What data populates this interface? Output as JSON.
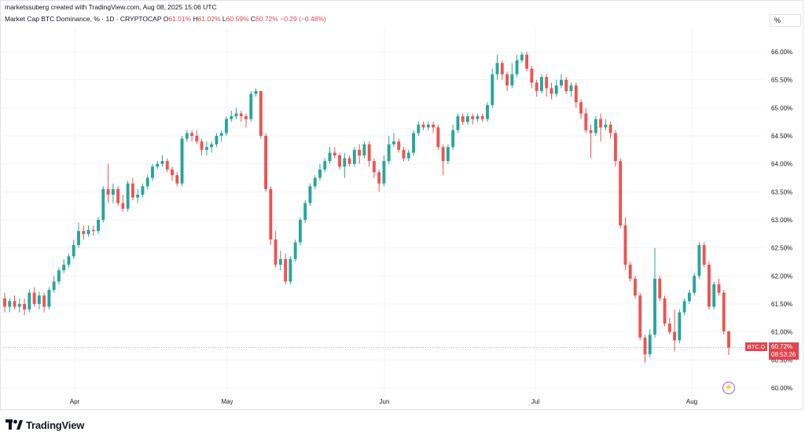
{
  "header": {
    "line": "marketssuberg created with TradingView.com, Aug 08, 2025 15:06 UTC"
  },
  "title": {
    "symbol": "Market Cap BTC Dominance, % · 1D · CRYPTOCAP",
    "o_label": "O",
    "o": "61.01%",
    "h_label": "H",
    "h": "61.02%",
    "l_label": "L",
    "l": "60.59%",
    "c_label": "C",
    "c": "60.72%",
    "change": "−0.29 (−0.48%)"
  },
  "scale_mode": "%",
  "price_tag": {
    "symbol": "BTC.D",
    "price": "60.72%",
    "countdown": "08:53:26"
  },
  "brand": {
    "name": "TradingView"
  },
  "colors": {
    "up": "#26a69a",
    "down": "#ef5350",
    "grid": "#f0f3fa",
    "text": "#131722",
    "flash": "#b04fcf"
  },
  "chart_data": {
    "type": "candlestick",
    "x_labels": [
      "Apr",
      "May",
      "Jun",
      "Jul",
      "Aug"
    ],
    "y_ticks": [
      "66.00%",
      "65.50%",
      "65.00%",
      "64.50%",
      "64.00%",
      "63.50%",
      "63.00%",
      "62.50%",
      "62.00%",
      "61.50%",
      "61.00%",
      "60.50%",
      "60.00%"
    ],
    "ylim": [
      59.85,
      66.55
    ],
    "last_price": 60.72,
    "candles": [
      [
        61.6,
        61.45,
        61.7,
        61.35
      ],
      [
        61.45,
        61.55,
        61.6,
        61.35
      ],
      [
        61.55,
        61.45,
        61.65,
        61.4
      ],
      [
        61.45,
        61.5,
        61.6,
        61.35
      ],
      [
        61.5,
        61.4,
        61.6,
        61.3
      ],
      [
        61.4,
        61.7,
        61.75,
        61.35
      ],
      [
        61.7,
        61.5,
        61.8,
        61.45
      ],
      [
        61.5,
        61.65,
        61.72,
        61.4
      ],
      [
        61.65,
        61.45,
        61.7,
        61.35
      ],
      [
        61.45,
        61.75,
        61.8,
        61.4
      ],
      [
        61.75,
        61.9,
        62.0,
        61.7
      ],
      [
        61.9,
        62.1,
        62.15,
        61.85
      ],
      [
        62.1,
        62.2,
        62.3,
        62.05
      ],
      [
        62.2,
        62.35,
        62.4,
        62.15
      ],
      [
        62.35,
        62.55,
        62.65,
        62.3
      ],
      [
        62.55,
        62.8,
        62.95,
        62.5
      ],
      [
        62.8,
        62.75,
        62.9,
        62.65
      ],
      [
        62.75,
        62.82,
        62.9,
        62.7
      ],
      [
        62.82,
        62.8,
        62.9,
        62.72
      ],
      [
        62.8,
        63.0,
        63.05,
        62.75
      ],
      [
        63.0,
        63.55,
        63.6,
        62.95
      ],
      [
        63.55,
        63.45,
        64.0,
        63.3
      ],
      [
        63.45,
        63.55,
        63.65,
        63.3
      ],
      [
        63.55,
        63.3,
        63.6,
        63.25
      ],
      [
        63.3,
        63.2,
        63.45,
        63.15
      ],
      [
        63.2,
        63.65,
        63.7,
        63.15
      ],
      [
        63.65,
        63.4,
        63.75,
        63.35
      ],
      [
        63.4,
        63.45,
        63.55,
        63.3
      ],
      [
        63.45,
        63.6,
        63.65,
        63.4
      ],
      [
        63.6,
        63.75,
        63.8,
        63.55
      ],
      [
        63.75,
        63.95,
        64.0,
        63.7
      ],
      [
        63.95,
        64.0,
        64.05,
        63.9
      ],
      [
        64.0,
        64.05,
        64.15,
        63.95
      ],
      [
        64.05,
        63.9,
        64.1,
        63.85
      ],
      [
        63.9,
        63.8,
        63.95,
        63.7
      ],
      [
        63.8,
        63.65,
        63.85,
        63.6
      ],
      [
        63.65,
        64.45,
        64.5,
        63.6
      ],
      [
        64.45,
        64.55,
        64.6,
        64.4
      ],
      [
        64.55,
        64.5,
        64.6,
        64.4
      ],
      [
        64.5,
        64.4,
        64.6,
        64.35
      ],
      [
        64.4,
        64.25,
        64.45,
        64.15
      ],
      [
        64.25,
        64.3,
        64.4,
        64.15
      ],
      [
        64.3,
        64.35,
        64.4,
        64.2
      ],
      [
        64.35,
        64.5,
        64.55,
        64.3
      ],
      [
        64.5,
        64.55,
        64.6,
        64.4
      ],
      [
        64.55,
        64.8,
        64.85,
        64.5
      ],
      [
        64.8,
        64.85,
        64.95,
        64.75
      ],
      [
        64.85,
        64.9,
        65.0,
        64.8
      ],
      [
        64.9,
        64.85,
        64.95,
        64.75
      ],
      [
        64.85,
        64.8,
        64.9,
        64.65
      ],
      [
        64.8,
        65.25,
        65.3,
        64.75
      ],
      [
        65.25,
        65.3,
        65.35,
        65.2
      ],
      [
        65.3,
        64.5,
        65.3,
        64.45
      ],
      [
        64.5,
        63.55,
        64.55,
        63.5
      ],
      [
        63.55,
        62.65,
        63.6,
        62.55
      ],
      [
        62.65,
        62.2,
        62.8,
        62.15
      ],
      [
        62.2,
        62.3,
        62.45,
        62.1
      ],
      [
        62.3,
        61.9,
        62.4,
        61.85
      ],
      [
        61.9,
        62.3,
        62.35,
        61.85
      ],
      [
        62.3,
        62.6,
        62.65,
        62.25
      ],
      [
        62.6,
        63.0,
        63.05,
        62.55
      ],
      [
        63.0,
        63.3,
        63.35,
        62.95
      ],
      [
        63.3,
        63.6,
        63.65,
        63.25
      ],
      [
        63.6,
        63.75,
        63.8,
        63.55
      ],
      [
        63.75,
        63.9,
        64.0,
        63.7
      ],
      [
        63.9,
        64.05,
        64.1,
        63.85
      ],
      [
        64.05,
        64.2,
        64.3,
        64.0
      ],
      [
        64.2,
        64.15,
        64.3,
        64.1
      ],
      [
        64.15,
        63.95,
        64.2,
        63.9
      ],
      [
        63.95,
        64.1,
        64.2,
        63.75
      ],
      [
        64.1,
        64.0,
        64.15,
        63.95
      ],
      [
        64.0,
        64.25,
        64.3,
        63.95
      ],
      [
        64.25,
        64.15,
        64.35,
        64.0
      ],
      [
        64.15,
        64.35,
        64.4,
        64.1
      ],
      [
        64.35,
        64.05,
        64.4,
        63.95
      ],
      [
        64.05,
        63.85,
        64.1,
        63.75
      ],
      [
        63.85,
        63.65,
        63.9,
        63.5
      ],
      [
        63.65,
        64.05,
        64.15,
        63.6
      ],
      [
        64.05,
        64.35,
        64.5,
        64.0
      ],
      [
        64.35,
        64.4,
        64.55,
        64.3
      ],
      [
        64.4,
        64.25,
        64.45,
        64.2
      ],
      [
        64.25,
        64.1,
        64.3,
        64.05
      ],
      [
        64.1,
        64.2,
        64.25,
        64.05
      ],
      [
        64.2,
        64.55,
        64.6,
        64.15
      ],
      [
        64.55,
        64.7,
        64.75,
        64.5
      ],
      [
        64.7,
        64.65,
        64.75,
        64.6
      ],
      [
        64.65,
        64.7,
        64.75,
        64.6
      ],
      [
        64.7,
        64.65,
        64.75,
        64.55
      ],
      [
        64.65,
        64.3,
        64.7,
        64.25
      ],
      [
        64.3,
        64.05,
        64.35,
        63.8
      ],
      [
        64.05,
        64.3,
        64.35,
        64.0
      ],
      [
        64.3,
        64.6,
        64.7,
        64.25
      ],
      [
        64.6,
        64.85,
        64.9,
        64.55
      ],
      [
        64.85,
        64.75,
        64.9,
        64.7
      ],
      [
        64.75,
        64.85,
        64.9,
        64.7
      ],
      [
        64.85,
        64.8,
        64.9,
        64.7
      ],
      [
        64.8,
        64.85,
        64.9,
        64.75
      ],
      [
        64.85,
        64.8,
        64.9,
        64.75
      ],
      [
        64.8,
        65.05,
        65.1,
        64.75
      ],
      [
        65.05,
        65.6,
        65.7,
        65.0
      ],
      [
        65.6,
        65.8,
        65.95,
        65.5
      ],
      [
        65.8,
        65.6,
        65.85,
        65.5
      ],
      [
        65.6,
        65.4,
        65.65,
        65.3
      ],
      [
        65.4,
        65.6,
        65.8,
        65.35
      ],
      [
        65.6,
        65.85,
        65.95,
        65.55
      ],
      [
        65.85,
        65.95,
        66.0,
        65.8
      ],
      [
        65.95,
        65.7,
        66.0,
        65.65
      ],
      [
        65.7,
        65.45,
        65.75,
        65.35
      ],
      [
        65.45,
        65.3,
        65.5,
        65.2
      ],
      [
        65.3,
        65.55,
        65.6,
        65.25
      ],
      [
        65.55,
        65.35,
        65.6,
        65.2
      ],
      [
        65.35,
        65.25,
        65.45,
        65.15
      ],
      [
        65.25,
        65.4,
        65.5,
        65.2
      ],
      [
        65.4,
        65.5,
        65.6,
        65.35
      ],
      [
        65.5,
        65.3,
        65.55,
        65.25
      ],
      [
        65.3,
        65.4,
        65.45,
        65.2
      ],
      [
        65.4,
        65.1,
        65.45,
        65.0
      ],
      [
        65.1,
        64.9,
        65.15,
        64.8
      ],
      [
        64.9,
        64.6,
        65.0,
        64.55
      ],
      [
        64.6,
        64.55,
        64.7,
        64.1
      ],
      [
        64.55,
        64.8,
        64.85,
        64.5
      ],
      [
        64.8,
        64.65,
        64.9,
        64.4
      ],
      [
        64.65,
        64.7,
        64.8,
        64.6
      ],
      [
        64.7,
        64.55,
        64.75,
        64.45
      ],
      [
        64.55,
        64.05,
        64.6,
        63.95
      ],
      [
        64.05,
        62.9,
        64.1,
        62.85
      ],
      [
        62.9,
        62.2,
        63.05,
        62.1
      ],
      [
        62.2,
        61.95,
        62.25,
        61.9
      ],
      [
        61.95,
        61.65,
        62.0,
        61.6
      ],
      [
        61.65,
        60.9,
        61.7,
        60.85
      ],
      [
        60.9,
        60.6,
        60.95,
        60.45
      ],
      [
        60.6,
        60.95,
        61.05,
        60.55
      ],
      [
        60.95,
        61.95,
        62.5,
        60.9
      ],
      [
        61.95,
        61.6,
        62.0,
        61.55
      ],
      [
        61.6,
        61.15,
        61.65,
        61.1
      ],
      [
        61.15,
        61.0,
        61.25,
        60.95
      ],
      [
        61.0,
        60.85,
        61.4,
        60.65
      ],
      [
        60.85,
        61.35,
        61.4,
        60.8
      ],
      [
        61.35,
        61.55,
        61.6,
        61.3
      ],
      [
        61.55,
        61.7,
        61.75,
        61.5
      ],
      [
        61.7,
        62.0,
        62.05,
        61.65
      ],
      [
        62.0,
        62.55,
        62.6,
        61.95
      ],
      [
        62.55,
        62.2,
        62.6,
        62.15
      ],
      [
        62.2,
        61.45,
        62.25,
        61.4
      ],
      [
        61.45,
        61.85,
        61.9,
        61.4
      ],
      [
        61.85,
        61.7,
        61.95,
        61.65
      ],
      [
        61.7,
        61.01,
        61.75,
        60.95
      ],
      [
        61.01,
        60.72,
        61.02,
        60.59
      ]
    ]
  }
}
